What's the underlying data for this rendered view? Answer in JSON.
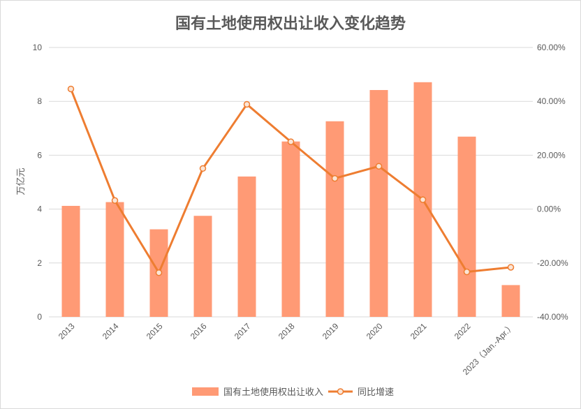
{
  "chart_data": {
    "type": "bar+line",
    "title": "国有土地使用权出让收入变化趋势",
    "categories": [
      "2013",
      "2014",
      "2015",
      "2016",
      "2017",
      "2018",
      "2019",
      "2020",
      "2021",
      "2022",
      "2023（Jan.-Apr.）"
    ],
    "series": [
      {
        "name": "国有土地使用权出让收入",
        "type": "bar",
        "axis": "left",
        "color": "#FF9A75",
        "values": [
          4.12,
          4.26,
          3.25,
          3.75,
          5.21,
          6.51,
          7.26,
          8.42,
          8.71,
          6.69,
          1.18
        ]
      },
      {
        "name": "同比增速",
        "type": "line",
        "axis": "right",
        "color": "#EE7D31",
        "values": [
          44.6,
          3.2,
          -23.6,
          15.1,
          38.9,
          25.0,
          11.4,
          15.9,
          3.5,
          -23.3,
          -21.6
        ]
      }
    ],
    "ylabel": "万亿元",
    "ylim": [
      0,
      10
    ],
    "yticks": [
      "0",
      "2",
      "4",
      "6",
      "8",
      "10"
    ],
    "y2lim": [
      -40,
      60
    ],
    "y2ticks": [
      "-40.00%",
      "-20.00%",
      "0.00%",
      "20.00%",
      "40.00%",
      "60.00%"
    ],
    "grid": true,
    "legend_position": "bottom"
  }
}
